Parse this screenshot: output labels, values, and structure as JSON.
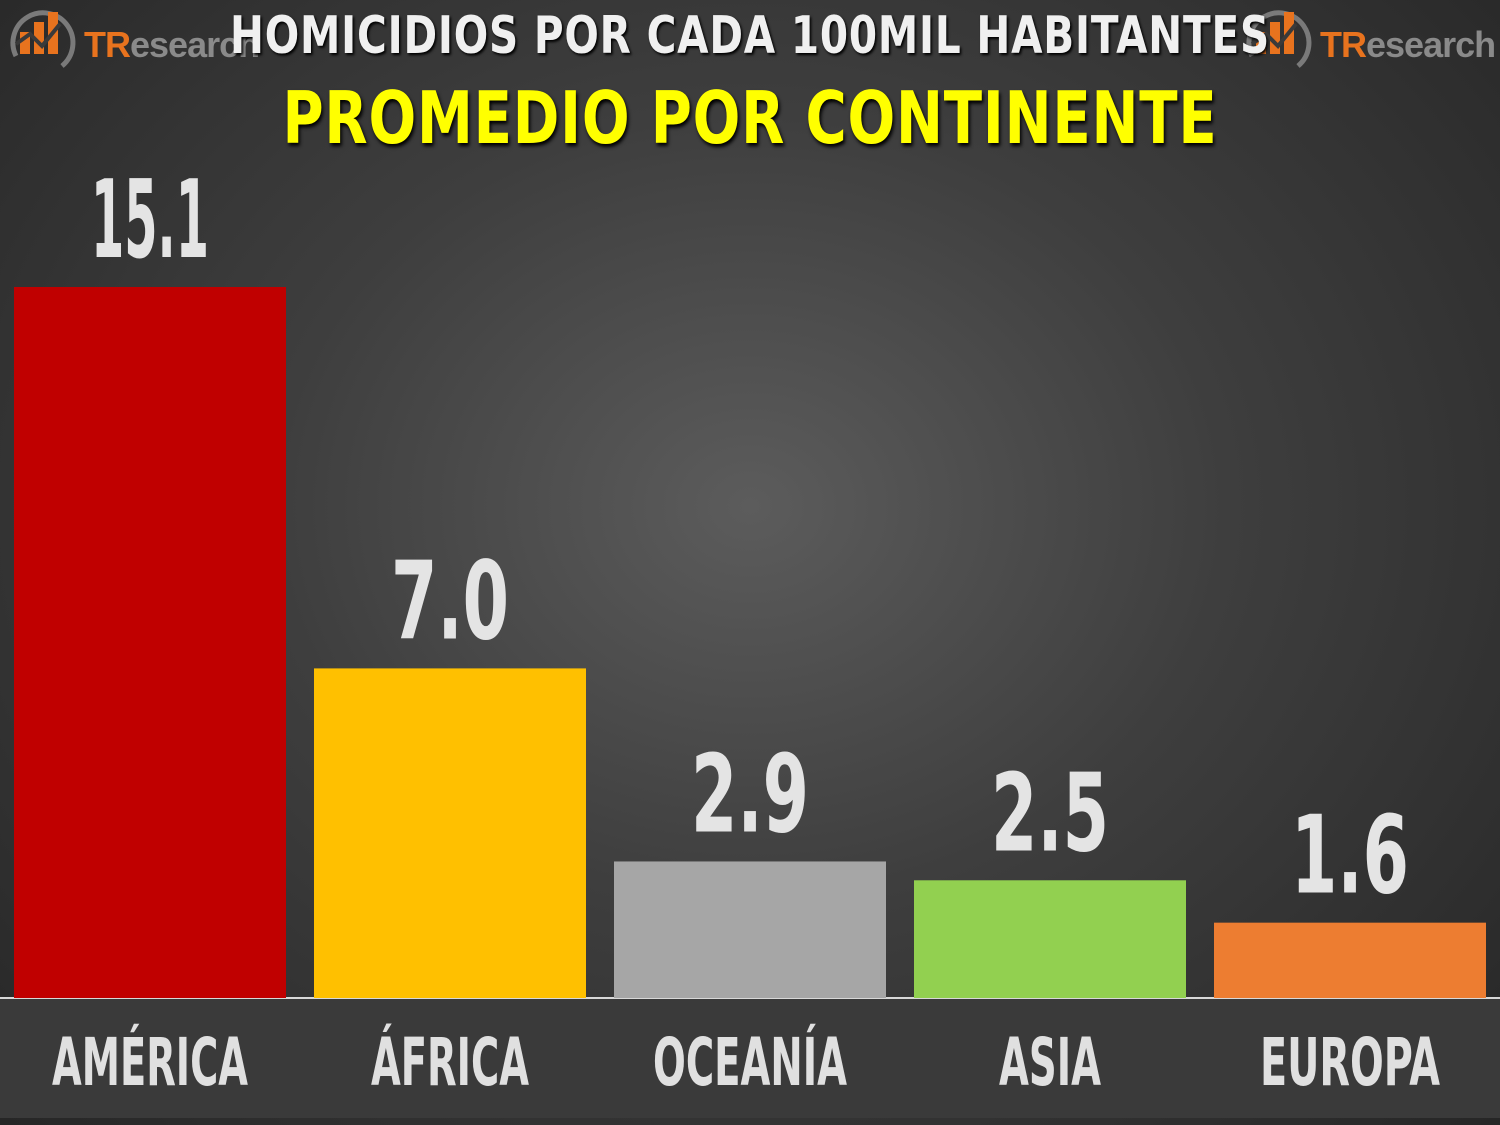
{
  "header": {
    "title": "HOMICIDIOS POR CADA 100MIL HABITANTES",
    "subtitle": "PROMEDIO POR CONTINENTE"
  },
  "logo": {
    "text_tr": "TR",
    "text_rest": "esearch"
  },
  "colors": {
    "title": "#f0f0f0",
    "subtitle": "#ffff00",
    "america": "#c00000",
    "africa": "#ffc000",
    "oceania": "#a6a6a6",
    "asia": "#92d050",
    "europa": "#ed7d31",
    "logo_accent": "#e8731e"
  },
  "chart_data": {
    "type": "bar",
    "title": "HOMICIDIOS POR CADA 100MIL HABITANTES",
    "subtitle": "PROMEDIO POR CONTINENTE",
    "categories": [
      "AMÉRICA",
      "ÁFRICA",
      "OCEANÍA",
      "ASIA",
      "EUROPA"
    ],
    "values": [
      15.1,
      7.0,
      2.9,
      2.5,
      1.6
    ],
    "value_labels": [
      "15.1",
      "7.0",
      "2.9",
      "2.5",
      "1.6"
    ],
    "bar_colors": [
      "#c00000",
      "#ffc000",
      "#a6a6a6",
      "#92d050",
      "#ed7d31"
    ],
    "ylim": [
      0,
      15.1
    ],
    "grid": false,
    "legend": "none"
  }
}
